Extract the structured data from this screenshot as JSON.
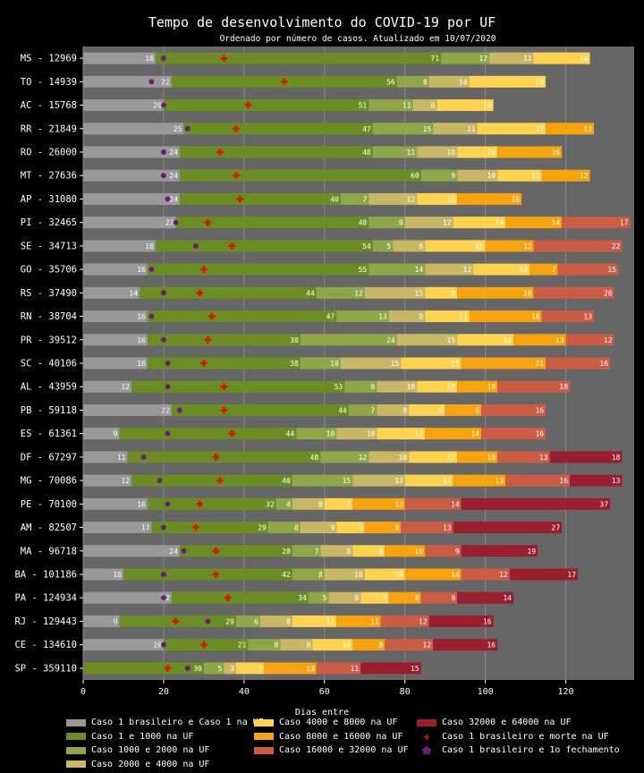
{
  "chart_data": {
    "type": "bar",
    "subtype": "stacked-horizontal",
    "title": "Tempo de desenvolvimento do COVID-19 por UF",
    "subtitle": "Ordenado por número de casos. Atualizado em 10/07/2020",
    "xlabel": "Dias entre",
    "xlim": [
      0,
      137
    ],
    "xticks": [
      "0",
      "20",
      "40",
      "60",
      "80",
      "100",
      "120"
    ],
    "grid": true,
    "legend_position": "bottom",
    "colors": {
      "background": "#000000",
      "plot_bg": "#666666",
      "grid": "#888888",
      "segments": [
        "#999999",
        "#6b8e23",
        "#8fa747",
        "#c8b863",
        "#ffd34d",
        "#f7a30e",
        "#cd5c45",
        "#9a1f2e"
      ],
      "death_marker": "#dd1111",
      "closure_marker": "#6a1b7a"
    },
    "segment_names": [
      "Caso 1 brasileiro e Caso 1 na UF",
      "Caso 1 e 1000 na UF",
      "Caso 1000 e 2000 na UF",
      "Caso 2000 e 4000 na UF",
      "Caso 4000 e 8000 na UF",
      "Caso 8000 e 16000 na UF",
      "Caso 16000 e 32000 na UF",
      "Caso 32000 e 64000 na UF"
    ],
    "marker_names": {
      "death": "Caso 1 brasileiro e morte na UF",
      "closure": "Caso 1 brasileiro e 1o fechamento"
    },
    "rows": [
      {
        "label": "MS - 12969",
        "segments": [
          18,
          71,
          12,
          11,
          14
        ],
        "death": 35,
        "closure": 20
      },
      {
        "label": "TO - 14939",
        "segments": [
          22,
          56,
          8,
          10,
          19
        ],
        "death": 50,
        "closure": 17
      },
      {
        "label": "AC - 15768",
        "segments": [
          20,
          51,
          11,
          6,
          14
        ],
        "death": 41,
        "closure": 20
      },
      {
        "label": "RR - 21849",
        "segments": [
          25,
          47,
          15,
          11,
          17,
          12
        ],
        "death": 38,
        "closure": 26
      },
      {
        "label": "RO - 26000",
        "segments": [
          24,
          48,
          11,
          10,
          10,
          16
        ],
        "death": 34,
        "closure": 20
      },
      {
        "label": "MT - 27636",
        "segments": [
          24,
          60,
          9,
          10,
          11,
          12
        ],
        "death": 38,
        "closure": 20
      },
      {
        "label": "AP - 31080",
        "segments": [
          24,
          40,
          7,
          12,
          10,
          16
        ],
        "death": 39,
        "closure": 21
      },
      {
        "label": "PI - 32465",
        "segments": [
          23,
          48,
          9,
          12,
          13,
          14,
          17
        ],
        "death": 31,
        "closure": 23
      },
      {
        "label": "SE - 34713",
        "segments": [
          18,
          54,
          5,
          8,
          15,
          12,
          22
        ],
        "death": 37,
        "closure": 28
      },
      {
        "label": "GO - 35706",
        "segments": [
          16,
          55,
          14,
          12,
          14,
          7,
          15
        ],
        "death": 30,
        "closure": 17
      },
      {
        "label": "RS - 37490",
        "segments": [
          14,
          44,
          12,
          15,
          8,
          19,
          20
        ],
        "death": 29,
        "closure": 20
      },
      {
        "label": "RN - 38704",
        "segments": [
          16,
          47,
          13,
          9,
          11,
          18,
          13
        ],
        "death": 32,
        "closure": 17
      },
      {
        "label": "PR - 39512",
        "segments": [
          16,
          38,
          24,
          15,
          14,
          13,
          12
        ],
        "death": 31,
        "closure": 20
      },
      {
        "label": "SC - 40106",
        "segments": [
          16,
          38,
          10,
          15,
          15,
          21,
          16
        ],
        "death": 30,
        "closure": 21
      },
      {
        "label": "AL - 43959",
        "segments": [
          12,
          53,
          8,
          10,
          10,
          10,
          18
        ],
        "death": 35,
        "closure": 21
      },
      {
        "label": "PB - 59118",
        "segments": [
          22,
          44,
          7,
          8,
          9,
          9,
          16
        ],
        "death": 35,
        "closure": 24
      },
      {
        "label": "ES - 61361",
        "segments": [
          9,
          44,
          10,
          10,
          12,
          14,
          16
        ],
        "death": 37,
        "closure": 21
      },
      {
        "label": "DF - 67297",
        "segments": [
          11,
          48,
          12,
          10,
          12,
          10,
          13,
          18
        ],
        "death": 33,
        "closure": 15
      },
      {
        "label": "MG - 70086",
        "segments": [
          12,
          40,
          15,
          13,
          12,
          13,
          16,
          13
        ],
        "death": 34,
        "closure": 19
      },
      {
        "label": "PE - 70100",
        "segments": [
          16,
          32,
          4,
          8,
          7,
          13,
          14,
          37
        ],
        "death": 29,
        "closure": 21
      },
      {
        "label": "AM - 82507",
        "segments": [
          17,
          29,
          8,
          9,
          7,
          9,
          13,
          27
        ],
        "death": 28,
        "closure": 20
      },
      {
        "label": "MA - 96718",
        "segments": [
          24,
          28,
          7,
          8,
          8,
          10,
          9,
          19
        ],
        "death": 33,
        "closure": 25
      },
      {
        "label": "BA - 101186",
        "segments": [
          10,
          42,
          8,
          10,
          10,
          14,
          12,
          17
        ],
        "death": 33,
        "closure": 20
      },
      {
        "label": "PA - 124934",
        "segments": [
          22,
          34,
          5,
          8,
          7,
          8,
          9,
          14
        ],
        "death": 36,
        "closure": 20
      },
      {
        "label": "RJ - 129443",
        "segments": [
          9,
          29,
          6,
          8,
          11,
          11,
          12,
          16
        ],
        "death": 23,
        "closure": 31
      },
      {
        "label": "CE - 134610",
        "segments": [
          20,
          21,
          8,
          8,
          10,
          8,
          12,
          16
        ],
        "death": 30,
        "closure": 20
      },
      {
        "label": "SP - 359110",
        "segments": [
          0,
          30,
          5,
          3,
          7,
          13,
          11,
          15
        ],
        "death": 21,
        "closure": 26
      }
    ]
  }
}
